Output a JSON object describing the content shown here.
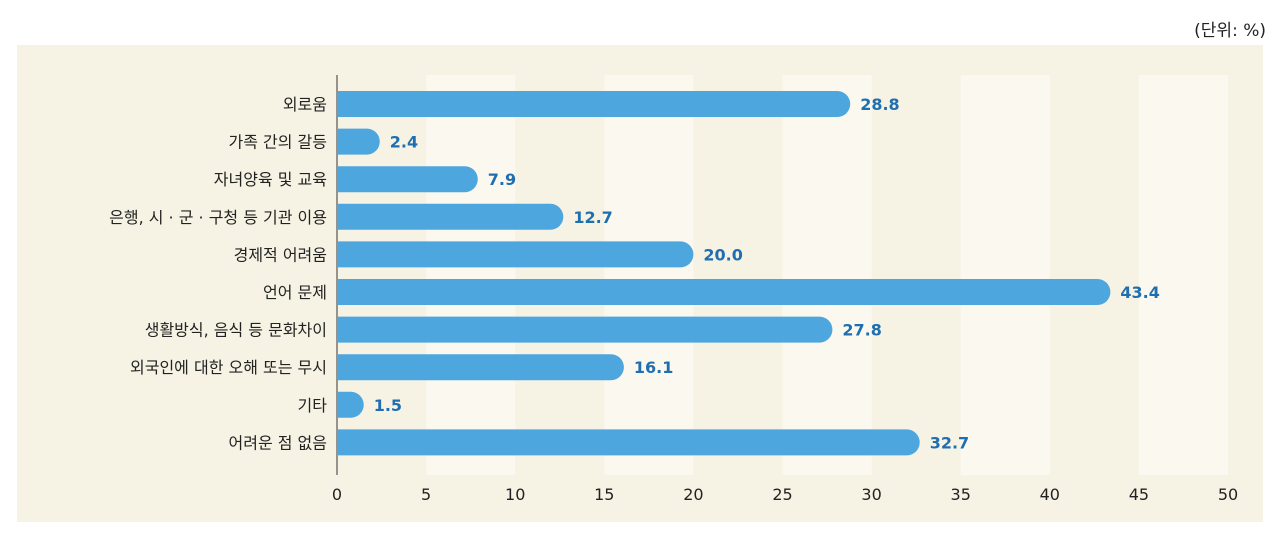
{
  "unit_label": "(단위: %)",
  "colors": {
    "bar": "#4da6de",
    "value_text": "#1f6fb0",
    "panel_bg": "#f7f3e4",
    "stripe": "#fbf8ef"
  },
  "chart_data": {
    "type": "bar",
    "orientation": "horizontal",
    "categories": [
      "외로움",
      "가족 간의 갈등",
      "자녀양육 및 교육",
      "은행, 시 · 군 · 구청 등 기관 이용",
      "경제적 어려움",
      "언어 문제",
      "생활방식, 음식 등 문화차이",
      "외국인에 대한 오해 또는 무시",
      "기타",
      "어려운 점 없음"
    ],
    "values": [
      28.8,
      2.4,
      7.9,
      12.7,
      20.0,
      43.4,
      27.8,
      16.1,
      1.5,
      32.7
    ],
    "value_labels": [
      "28.8",
      "2.4",
      "7.9",
      "12.7",
      "20.0",
      "43.4",
      "27.8",
      "16.1",
      "1.5",
      "32.7"
    ],
    "xlim": [
      0,
      50
    ],
    "xticks": [
      0,
      5,
      10,
      15,
      20,
      25,
      30,
      35,
      40,
      45,
      50
    ],
    "grid": "alternating vertical bands"
  }
}
